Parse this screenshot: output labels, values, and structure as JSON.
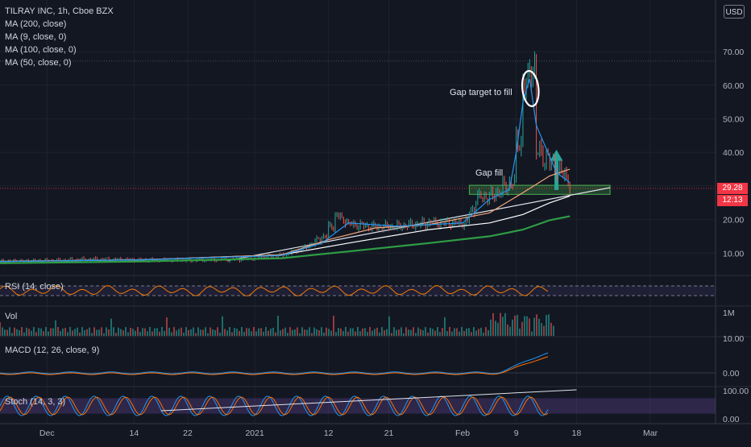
{
  "header": {
    "symbol": "TILRAY INC, 1h, Cboe BZX",
    "currency": "USD"
  },
  "indicators": [
    {
      "label": "MA (200, close)",
      "color": "#2e9e44"
    },
    {
      "label": "MA (9, close, 0)",
      "color": "#2196f3"
    },
    {
      "label": "MA (100, close, 0)",
      "color": "#ffffff"
    },
    {
      "label": "MA (50, close, 0)",
      "color": "#f0a57a"
    }
  ],
  "price_badge": {
    "price": "29.28",
    "countdown": "12:13"
  },
  "annotations": {
    "gap_target": "Gap target to fill",
    "gap_fill": "Gap fill"
  },
  "panes": {
    "rsi": {
      "title": "RSI (14, close)",
      "upper": 70,
      "lower": 30
    },
    "vol": {
      "title": "Vol",
      "axis_label": "1M"
    },
    "macd": {
      "title": "MACD (12, 26, close, 9)",
      "ticks": [
        "10.00",
        "0.00"
      ]
    },
    "stoch": {
      "title": "Stoch (14, 3, 3)",
      "ticks": [
        "100.00",
        "0.00"
      ]
    }
  },
  "chart_data": {
    "type": "line",
    "title": "TILRAY INC, 1h, Cboe BZX",
    "y_ticks": [
      10,
      20,
      30,
      40,
      50,
      60,
      70
    ],
    "y_tick_labels": [
      "10.00",
      "20.00",
      "30.00",
      "40.00",
      "50.00",
      "60.00",
      "70.00"
    ],
    "ylim": [
      4,
      82
    ],
    "x_tick_labels": [
      "Dec",
      "14",
      "22",
      "2021",
      "12",
      "21",
      "Feb",
      "9",
      "18",
      "Mar"
    ],
    "reference_high": 67.2,
    "last_price": 29.28,
    "gap_zone": [
      27.5,
      30.2
    ],
    "series": [
      {
        "name": "Price",
        "color": "#e0e3eb",
        "x": [
          "2020-11-24",
          "2020-12-01",
          "2020-12-08",
          "2020-12-15",
          "2020-12-22",
          "2020-12-29",
          "2021-01-05",
          "2021-01-08",
          "2021-01-11",
          "2021-01-13",
          "2021-01-15",
          "2021-01-19",
          "2021-01-22",
          "2021-01-27",
          "2021-02-01",
          "2021-02-03",
          "2021-02-05",
          "2021-02-08",
          "2021-02-09",
          "2021-02-10",
          "2021-02-11",
          "2021-02-12",
          "2021-02-16",
          "2021-02-17"
        ],
        "y": [
          7.5,
          7.8,
          8.2,
          8.0,
          7.9,
          8.1,
          9.5,
          11.5,
          15.0,
          21.0,
          18.5,
          17.8,
          18.0,
          19.0,
          19.0,
          26.5,
          27.0,
          31.0,
          43.0,
          60.0,
          65.0,
          40.0,
          33.0,
          29.28
        ]
      },
      {
        "name": "MA (200, close)",
        "color": "#2e9e44",
        "x": [
          "2020-11-24",
          "2020-12-15",
          "2021-01-05",
          "2021-01-15",
          "2021-01-27",
          "2021-02-05",
          "2021-02-10",
          "2021-02-14",
          "2021-02-17"
        ],
        "y": [
          7.0,
          7.5,
          8.5,
          10.5,
          13.0,
          15.0,
          17.0,
          19.8,
          21.0
        ]
      },
      {
        "name": "MA (100, close, 0)",
        "color": "#ffffff",
        "x": [
          "2020-11-24",
          "2020-12-15",
          "2021-01-05",
          "2021-01-15",
          "2021-01-27",
          "2021-02-05",
          "2021-02-10",
          "2021-02-14",
          "2021-02-17"
        ],
        "y": [
          7.5,
          8.0,
          9.5,
          13.0,
          17.0,
          19.0,
          21.5,
          25.0,
          27.0
        ]
      },
      {
        "name": "MA (50, close, 0)",
        "color": "#f0a57a",
        "x": [
          "2020-11-24",
          "2020-12-15",
          "2021-01-05",
          "2021-01-12",
          "2021-01-19",
          "2021-01-27",
          "2021-02-05",
          "2021-02-10",
          "2021-02-14",
          "2021-02-17"
        ],
        "y": [
          7.6,
          8.0,
          9.5,
          14.0,
          17.5,
          18.5,
          22.0,
          28.0,
          33.0,
          35.0
        ]
      },
      {
        "name": "MA (9, close, 0)",
        "color": "#2196f3",
        "x": [
          "2020-11-24",
          "2020-12-15",
          "2021-01-05",
          "2021-01-11",
          "2021-01-15",
          "2021-01-22",
          "2021-02-01",
          "2021-02-05",
          "2021-02-08",
          "2021-02-09",
          "2021-02-10",
          "2021-02-11",
          "2021-02-12",
          "2021-02-15",
          "2021-02-17"
        ],
        "y": [
          7.5,
          8.0,
          9.3,
          13.0,
          19.0,
          18.0,
          19.0,
          26.0,
          29.0,
          40.0,
          55.0,
          62.0,
          48.0,
          34.0,
          31.0
        ]
      }
    ]
  }
}
